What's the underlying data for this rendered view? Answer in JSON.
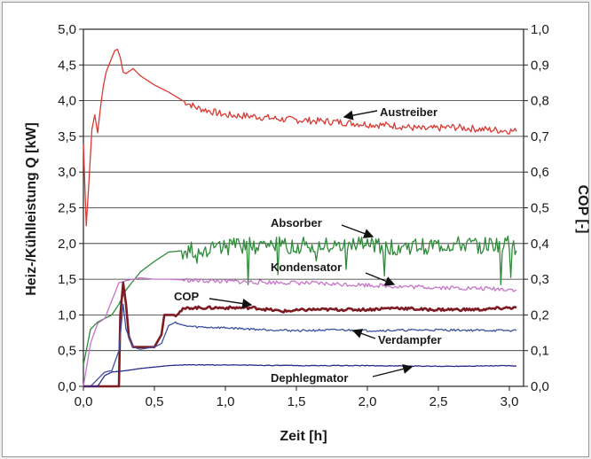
{
  "chart_data": {
    "type": "line",
    "xlabel": "Zeit [h]",
    "ylabel_left": "Heiz-/Kühlleistung Q [kW]",
    "ylabel_right": "COP [-]",
    "xlim": [
      0,
      3.1
    ],
    "ylim_left": [
      0,
      5
    ],
    "ylim_right": [
      0,
      1
    ],
    "x_ticks": [
      "0,0",
      "0,5",
      "1,0",
      "1,5",
      "2,0",
      "2,5",
      "3,0"
    ],
    "y_ticks_left": [
      "0,0",
      "0,5",
      "1,0",
      "1,5",
      "2,0",
      "2,5",
      "3,0",
      "3,5",
      "4,0",
      "4,5",
      "5,0"
    ],
    "y_ticks_right": [
      "0,0",
      "0,1",
      "0,2",
      "0,3",
      "0,4",
      "0,5",
      "0,6",
      "0,7",
      "0,8",
      "0,9",
      "1,0"
    ],
    "grid": "horizontal",
    "series": [
      {
        "name": "Austreiber",
        "axis": "left",
        "color": "#d83a34",
        "x": [
          0.0,
          0.02,
          0.04,
          0.06,
          0.08,
          0.1,
          0.12,
          0.14,
          0.16,
          0.18,
          0.2,
          0.22,
          0.24,
          0.26,
          0.28,
          0.3,
          0.35,
          0.4,
          0.5,
          0.6,
          0.7,
          0.8,
          0.9,
          1.0,
          1.2,
          1.4,
          1.6,
          1.8,
          2.0,
          2.2,
          2.4,
          2.6,
          2.8,
          3.0,
          3.05
        ],
        "y": [
          3.4,
          2.25,
          2.9,
          3.6,
          3.8,
          3.55,
          3.9,
          4.2,
          4.4,
          4.5,
          4.6,
          4.7,
          4.72,
          4.6,
          4.4,
          4.38,
          4.45,
          4.35,
          4.22,
          4.12,
          4.0,
          3.9,
          3.85,
          3.8,
          3.78,
          3.74,
          3.72,
          3.7,
          3.67,
          3.65,
          3.6,
          3.63,
          3.6,
          3.58,
          3.57
        ]
      },
      {
        "name": "Absorber",
        "axis": "left",
        "color": "#2e8b3a",
        "x": [
          0.0,
          0.05,
          0.1,
          0.15,
          0.2,
          0.25,
          0.3,
          0.4,
          0.5,
          0.6,
          0.7,
          0.8,
          1.0,
          1.2,
          1.5,
          1.8,
          2.0,
          2.2,
          2.4,
          2.6,
          2.8,
          3.0,
          3.05
        ],
        "y": [
          0.3,
          0.8,
          0.9,
          0.95,
          1.0,
          1.15,
          1.35,
          1.6,
          1.75,
          1.88,
          1.9,
          1.92,
          1.95,
          1.97,
          1.98,
          1.95,
          1.98,
          1.95,
          1.96,
          1.98,
          1.97,
          2.0,
          1.9
        ]
      },
      {
        "name": "Kondensator",
        "axis": "left",
        "color": "#c774c9",
        "x": [
          0.0,
          0.05,
          0.1,
          0.15,
          0.2,
          0.25,
          0.3,
          0.4,
          0.5,
          0.6,
          0.7,
          0.8,
          1.0,
          1.2,
          1.5,
          1.8,
          2.0,
          2.2,
          2.4,
          2.6,
          2.8,
          3.0,
          3.05
        ],
        "y": [
          0.0,
          0.6,
          0.88,
          0.95,
          1.2,
          1.45,
          1.48,
          1.52,
          1.5,
          1.5,
          1.49,
          1.48,
          1.47,
          1.46,
          1.45,
          1.43,
          1.42,
          1.4,
          1.39,
          1.38,
          1.37,
          1.36,
          1.35
        ]
      },
      {
        "name": "COP",
        "axis": "right",
        "color": "#7d1a22",
        "x": [
          0.0,
          0.25,
          0.26,
          0.28,
          0.3,
          0.32,
          0.35,
          0.4,
          0.5,
          0.55,
          0.57,
          0.6,
          0.65,
          0.7,
          0.75,
          0.8,
          1.0,
          1.2,
          1.4,
          1.6,
          1.8,
          2.0,
          2.2,
          2.4,
          2.6,
          2.8,
          3.0,
          3.05
        ],
        "y": [
          0.0,
          0.0,
          0.2,
          0.29,
          0.23,
          0.14,
          0.11,
          0.11,
          0.11,
          0.145,
          0.2,
          0.2,
          0.2,
          0.215,
          0.22,
          0.22,
          0.22,
          0.22,
          0.21,
          0.215,
          0.215,
          0.215,
          0.22,
          0.215,
          0.215,
          0.215,
          0.22,
          0.22
        ]
      },
      {
        "name": "Verdampfer",
        "axis": "left",
        "color": "#3c50a0",
        "x": [
          0.0,
          0.05,
          0.1,
          0.15,
          0.2,
          0.25,
          0.28,
          0.3,
          0.35,
          0.4,
          0.5,
          0.55,
          0.6,
          0.65,
          0.7,
          0.8,
          1.0,
          1.2,
          1.5,
          1.8,
          2.0,
          2.5,
          3.0,
          3.05
        ],
        "y": [
          0.0,
          0.0,
          0.1,
          0.2,
          0.22,
          0.5,
          1.15,
          0.8,
          0.55,
          0.52,
          0.55,
          0.6,
          0.85,
          0.9,
          0.85,
          0.83,
          0.82,
          0.8,
          0.78,
          0.79,
          0.78,
          0.79,
          0.78,
          0.78
        ]
      },
      {
        "name": "Dephlegmator",
        "axis": "left",
        "color": "#2a2a8a",
        "x": [
          0.0,
          0.05,
          0.1,
          0.15,
          0.2,
          0.3,
          0.4,
          0.5,
          0.6,
          0.7,
          0.8,
          1.0,
          1.5,
          2.0,
          2.5,
          3.0,
          3.05
        ],
        "y": [
          0.0,
          0.0,
          0.0,
          0.15,
          0.2,
          0.22,
          0.25,
          0.27,
          0.29,
          0.3,
          0.3,
          0.3,
          0.29,
          0.29,
          0.28,
          0.29,
          0.28
        ]
      }
    ],
    "annotations": [
      "Austreiber",
      "Absorber",
      "Kondensator",
      "COP",
      "Verdampfer",
      "Dephlegmator"
    ]
  }
}
